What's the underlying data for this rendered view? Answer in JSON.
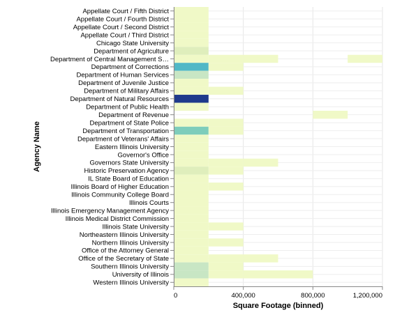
{
  "chart_data": {
    "type": "heatmap",
    "xlabel": "Square Footage (binned)",
    "ylabel": "Agency Name",
    "x_bin_size": 200000,
    "x_domain": [
      0,
      1200000
    ],
    "x_ticks": [
      0,
      400000,
      800000,
      1200000
    ],
    "x_tick_labels": [
      "0",
      "400,000",
      "800,000",
      "1,200,000"
    ],
    "grid": true,
    "colors": {
      "c1": "#f0f9c7",
      "c2": "#dfeebc",
      "c3": "#c8e6c4",
      "c4": "#7ecdbb",
      "c5": "#51b8c6",
      "c6": "#1f3a8c"
    },
    "categories": [
      "Appellate Court / Fifth District",
      "Appellate Court / Fourth District",
      "Appellate Court / Second District",
      "Appellate Court / Third District",
      "Chicago State University",
      "Department of Agriculture",
      "Department of Central Management S…",
      "Department of Corrections",
      "Department of Human Services",
      "Department of Juvenile Justice",
      "Department of Military Affairs",
      "Department of Natural Resources",
      "Department of Public Health",
      "Department of Revenue",
      "Department of State Police",
      "Department of Transportation",
      "Department of Veterans' Affairs",
      "Eastern Illinois University",
      "Governor's Office",
      "Governors State University",
      "Historic Preservation Agency",
      "IL State Board of Education",
      "Illinois Board of Higher Education",
      "Illinois Community College Board",
      "Illinois Courts",
      "Illinois Emergency Management Agency",
      "Illinois Medical District Commission",
      "Illinois State University",
      "Northeastern Illinois University",
      "Northern Illinois University",
      "Office of the Attorney General",
      "Office of the Secretary of State",
      "Southern Illinois University",
      "University of Illinois",
      "Western Illinois University"
    ],
    "cells": [
      {
        "y": "Appellate Court / Fifth District",
        "x0": 0,
        "x1": 200000,
        "color": "c1"
      },
      {
        "y": "Appellate Court / Fourth District",
        "x0": 0,
        "x1": 200000,
        "color": "c1"
      },
      {
        "y": "Appellate Court / Second District",
        "x0": 0,
        "x1": 200000,
        "color": "c1"
      },
      {
        "y": "Appellate Court / Third District",
        "x0": 0,
        "x1": 200000,
        "color": "c1"
      },
      {
        "y": "Chicago State University",
        "x0": 0,
        "x1": 200000,
        "color": "c1"
      },
      {
        "y": "Department of Agriculture",
        "x0": 0,
        "x1": 200000,
        "color": "c2"
      },
      {
        "y": "Department of Central Management S…",
        "x0": 0,
        "x1": 200000,
        "color": "c1"
      },
      {
        "y": "Department of Central Management S…",
        "x0": 200000,
        "x1": 400000,
        "color": "c1"
      },
      {
        "y": "Department of Central Management S…",
        "x0": 400000,
        "x1": 600000,
        "color": "c1"
      },
      {
        "y": "Department of Central Management S…",
        "x0": 1000000,
        "x1": 1200000,
        "color": "c1"
      },
      {
        "y": "Department of Corrections",
        "x0": 0,
        "x1": 200000,
        "color": "c5"
      },
      {
        "y": "Department of Corrections",
        "x0": 200000,
        "x1": 400000,
        "color": "c1"
      },
      {
        "y": "Department of Human Services",
        "x0": 0,
        "x1": 200000,
        "color": "c3"
      },
      {
        "y": "Department of Juvenile Justice",
        "x0": 0,
        "x1": 200000,
        "color": "c1"
      },
      {
        "y": "Department of Military Affairs",
        "x0": 0,
        "x1": 200000,
        "color": "c1"
      },
      {
        "y": "Department of Military Affairs",
        "x0": 200000,
        "x1": 400000,
        "color": "c1"
      },
      {
        "y": "Department of Natural Resources",
        "x0": 0,
        "x1": 200000,
        "color": "c6"
      },
      {
        "y": "Department of Public Health",
        "x0": 0,
        "x1": 200000,
        "color": "c1"
      },
      {
        "y": "Department of Revenue",
        "x0": 800000,
        "x1": 1000000,
        "color": "c1"
      },
      {
        "y": "Department of State Police",
        "x0": 0,
        "x1": 200000,
        "color": "c1"
      },
      {
        "y": "Department of State Police",
        "x0": 200000,
        "x1": 400000,
        "color": "c1"
      },
      {
        "y": "Department of Transportation",
        "x0": 0,
        "x1": 200000,
        "color": "c4"
      },
      {
        "y": "Department of Transportation",
        "x0": 200000,
        "x1": 400000,
        "color": "c1"
      },
      {
        "y": "Department of Veterans' Affairs",
        "x0": 0,
        "x1": 200000,
        "color": "c1"
      },
      {
        "y": "Eastern Illinois University",
        "x0": 0,
        "x1": 200000,
        "color": "c1"
      },
      {
        "y": "Governor's Office",
        "x0": 0,
        "x1": 200000,
        "color": "c1"
      },
      {
        "y": "Governors State University",
        "x0": 0,
        "x1": 200000,
        "color": "c1"
      },
      {
        "y": "Governors State University",
        "x0": 200000,
        "x1": 400000,
        "color": "c1"
      },
      {
        "y": "Governors State University",
        "x0": 400000,
        "x1": 600000,
        "color": "c1"
      },
      {
        "y": "Historic Preservation Agency",
        "x0": 0,
        "x1": 200000,
        "color": "c2"
      },
      {
        "y": "Historic Preservation Agency",
        "x0": 200000,
        "x1": 400000,
        "color": "c1"
      },
      {
        "y": "IL State Board of Education",
        "x0": 0,
        "x1": 200000,
        "color": "c1"
      },
      {
        "y": "Illinois Board of Higher Education",
        "x0": 0,
        "x1": 200000,
        "color": "c1"
      },
      {
        "y": "Illinois Board of Higher Education",
        "x0": 200000,
        "x1": 400000,
        "color": "c1"
      },
      {
        "y": "Illinois Community College Board",
        "x0": 0,
        "x1": 200000,
        "color": "c1"
      },
      {
        "y": "Illinois Courts",
        "x0": 0,
        "x1": 200000,
        "color": "c1"
      },
      {
        "y": "Illinois Emergency Management Agency",
        "x0": 0,
        "x1": 200000,
        "color": "c1"
      },
      {
        "y": "Illinois Medical District Commission",
        "x0": 0,
        "x1": 200000,
        "color": "c1"
      },
      {
        "y": "Illinois State University",
        "x0": 0,
        "x1": 200000,
        "color": "c1"
      },
      {
        "y": "Illinois State University",
        "x0": 200000,
        "x1": 400000,
        "color": "c1"
      },
      {
        "y": "Northeastern Illinois University",
        "x0": 0,
        "x1": 200000,
        "color": "c1"
      },
      {
        "y": "Northern Illinois University",
        "x0": 0,
        "x1": 200000,
        "color": "c1"
      },
      {
        "y": "Northern Illinois University",
        "x0": 200000,
        "x1": 400000,
        "color": "c1"
      },
      {
        "y": "Office of the Attorney General",
        "x0": 0,
        "x1": 200000,
        "color": "c1"
      },
      {
        "y": "Office of the Secretary of State",
        "x0": 0,
        "x1": 200000,
        "color": "c1"
      },
      {
        "y": "Office of the Secretary of State",
        "x0": 200000,
        "x1": 400000,
        "color": "c1"
      },
      {
        "y": "Office of the Secretary of State",
        "x0": 400000,
        "x1": 600000,
        "color": "c1"
      },
      {
        "y": "Southern Illinois University",
        "x0": 0,
        "x1": 200000,
        "color": "c3"
      },
      {
        "y": "Southern Illinois University",
        "x0": 200000,
        "x1": 400000,
        "color": "c1"
      },
      {
        "y": "University of Illinois",
        "x0": 0,
        "x1": 200000,
        "color": "c3"
      },
      {
        "y": "University of Illinois",
        "x0": 200000,
        "x1": 400000,
        "color": "c1"
      },
      {
        "y": "University of Illinois",
        "x0": 400000,
        "x1": 800000,
        "color": "c1"
      },
      {
        "y": "Western Illinois University",
        "x0": 0,
        "x1": 200000,
        "color": "c1"
      }
    ]
  }
}
